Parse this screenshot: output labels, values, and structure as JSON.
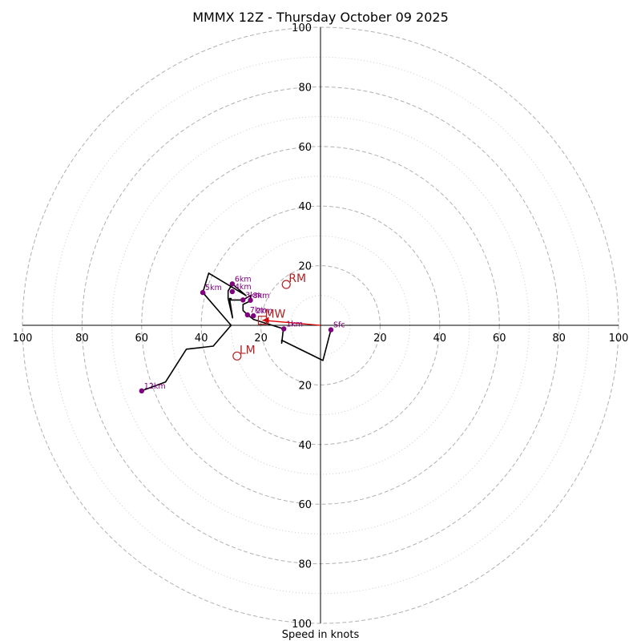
{
  "chart_data": {
    "type": "hodograph",
    "title": "MMMX 12Z - Thursday October 09 2025",
    "xlabel": "Speed in knots",
    "xlim": [
      -100,
      100
    ],
    "ylim": [
      -100,
      100
    ],
    "major_rings": [
      20,
      40,
      60,
      80,
      100
    ],
    "minor_rings": [
      10,
      30,
      50,
      70,
      90
    ],
    "tick_labels": {
      "left": [
        "100",
        "80",
        "60",
        "40",
        "20"
      ],
      "right": [
        "20",
        "40",
        "60",
        "80",
        "100"
      ],
      "top": [
        "20",
        "40",
        "60",
        "80",
        "100"
      ],
      "bottom": [
        "20",
        "40",
        "60",
        "80",
        "100"
      ]
    },
    "colors": {
      "trace": "#000000",
      "height_markers": "#800080",
      "motion": "#b22222",
      "shear_vector": "#dd0000",
      "rings": "#b0b0b0",
      "axes": "#000000"
    },
    "trace": [
      [
        3.5,
        -1.5
      ],
      [
        0.8,
        -11.8
      ],
      [
        -13,
        -5
      ],
      [
        -13,
        -6
      ],
      [
        -12.5,
        -1.5
      ],
      [
        -12.3,
        -1.2
      ],
      [
        -22.5,
        2
      ],
      [
        -25,
        4
      ],
      [
        -26,
        5
      ],
      [
        -26,
        7
      ],
      [
        -23.5,
        8.2
      ],
      [
        -23.5,
        10
      ],
      [
        -26,
        8.5
      ],
      [
        -30,
        8.5
      ],
      [
        -30,
        9
      ],
      [
        -30.5,
        9
      ],
      [
        -29.5,
        2.5
      ],
      [
        -31,
        9
      ],
      [
        -31,
        11.5
      ],
      [
        -29.6,
        13.9
      ],
      [
        -25,
        10
      ],
      [
        -37.5,
        17.5
      ],
      [
        -39.5,
        11
      ],
      [
        -30,
        0
      ],
      [
        -36,
        -7
      ],
      [
        -45,
        -8
      ],
      [
        -52,
        -19
      ],
      [
        -60,
        -22
      ]
    ],
    "height_markers": [
      {
        "label": "Sfc",
        "u": 3.5,
        "v": -1.5
      },
      {
        "label": "1km",
        "u": -12.3,
        "v": -1.2
      },
      {
        "label": "2km",
        "u": -22.5,
        "v": 3.2
      },
      {
        "label": "3km",
        "u": -26,
        "v": 8.5
      },
      {
        "label": "4km",
        "u": -29.6,
        "v": 11.3
      },
      {
        "label": "5km",
        "u": -39.5,
        "v": 11
      },
      {
        "label": "6km",
        "u": -29.6,
        "v": 13.9
      },
      {
        "label": "7km",
        "u": -24.5,
        "v": 3.5
      },
      {
        "label": "8km",
        "u": -23.5,
        "v": 8.4
      },
      {
        "label": "12km",
        "u": -60,
        "v": -22
      }
    ],
    "storm_motion": [
      {
        "label": "RM",
        "u": -11.5,
        "v": 13.7,
        "marker": "circle"
      },
      {
        "label": "LM",
        "u": -28,
        "v": -10.3,
        "marker": "circle"
      },
      {
        "label": "MW",
        "u": -19.5,
        "v": 1.7,
        "marker": "square"
      }
    ],
    "shear_vector": {
      "from": [
        0,
        0
      ],
      "to": [
        -19.5,
        1.7
      ]
    }
  }
}
